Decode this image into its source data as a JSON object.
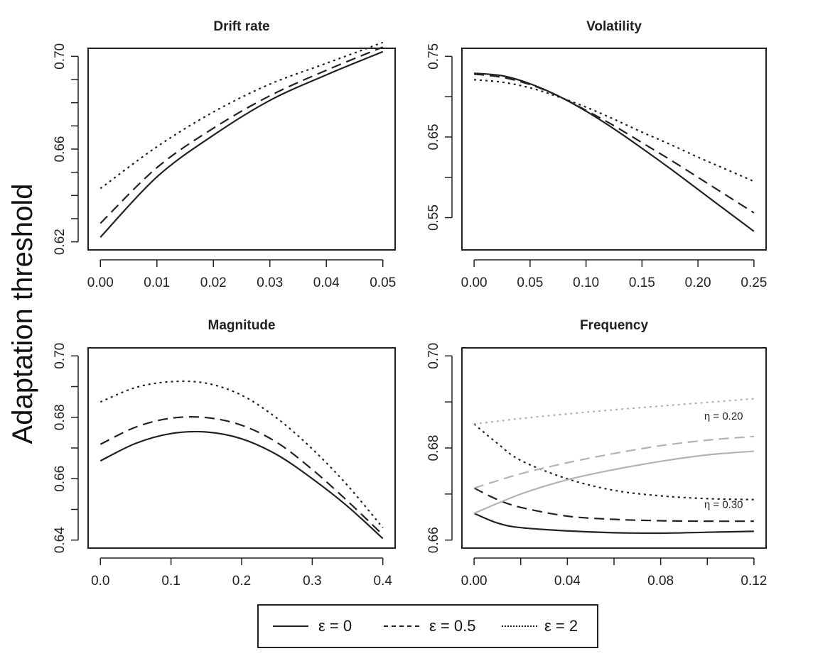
{
  "figure": {
    "ylabel": "Adaptation threshold"
  },
  "legend": {
    "items": [
      {
        "label": "ε = 0",
        "style": "solid"
      },
      {
        "label": "ε = 0.5",
        "style": "dashed"
      },
      {
        "label": "ε = 2",
        "style": "dotted"
      }
    ]
  },
  "chart_data": [
    {
      "type": "line",
      "title": "Drift rate",
      "xlabel": "",
      "ylabel": "",
      "xlim": [
        0,
        0.05
      ],
      "ylim": [
        0.62,
        0.7
      ],
      "xticks": [
        0.0,
        0.01,
        0.02,
        0.03,
        0.04,
        0.05
      ],
      "xtick_labels": [
        "0.00",
        "0.01",
        "0.02",
        "0.03",
        "0.04",
        "0.05"
      ],
      "yticks": [
        0.62,
        0.63,
        0.64,
        0.65,
        0.66,
        0.67,
        0.68,
        0.69,
        0.7
      ],
      "ytick_labels": {
        "0.62": "0.62",
        "0.66": "0.66",
        "0.70": "0.70"
      },
      "grid": false,
      "series": [
        {
          "style": "solid",
          "x": [
            0,
            0.01,
            0.02,
            0.03,
            0.04,
            0.05
          ],
          "y": [
            0.622,
            0.648,
            0.666,
            0.681,
            0.692,
            0.702
          ]
        },
        {
          "style": "dashed",
          "x": [
            0,
            0.01,
            0.02,
            0.03,
            0.04,
            0.05
          ],
          "y": [
            0.628,
            0.652,
            0.669,
            0.683,
            0.694,
            0.704
          ]
        },
        {
          "style": "dotted",
          "x": [
            0,
            0.01,
            0.02,
            0.03,
            0.04,
            0.05
          ],
          "y": [
            0.643,
            0.661,
            0.676,
            0.688,
            0.697,
            0.706
          ]
        }
      ]
    },
    {
      "type": "line",
      "title": "Volatility",
      "xlabel": "",
      "ylabel": "",
      "xlim": [
        0,
        0.25
      ],
      "ylim": [
        0.52,
        0.75
      ],
      "xticks": [
        0.0,
        0.05,
        0.1,
        0.15,
        0.2,
        0.25
      ],
      "xtick_labels": [
        "0.00",
        "0.05",
        "0.10",
        "0.15",
        "0.20",
        "0.25"
      ],
      "yticks": [
        0.55,
        0.6,
        0.65,
        0.7,
        0.75
      ],
      "ytick_labels": {
        "0.55": "0.55",
        "0.65": "0.65",
        "0.75": "0.75"
      },
      "grid": false,
      "series": [
        {
          "style": "solid",
          "x": [
            0,
            0.025,
            0.05,
            0.075,
            0.1,
            0.125,
            0.15,
            0.175,
            0.2,
            0.225,
            0.25
          ],
          "y": [
            0.729,
            0.726,
            0.716,
            0.701,
            0.682,
            0.66,
            0.636,
            0.611,
            0.585,
            0.559,
            0.533
          ]
        },
        {
          "style": "dashed",
          "x": [
            0,
            0.025,
            0.05,
            0.075,
            0.1,
            0.125,
            0.15,
            0.175,
            0.2,
            0.225,
            0.25
          ],
          "y": [
            0.728,
            0.724,
            0.715,
            0.701,
            0.683,
            0.664,
            0.643,
            0.622,
            0.6,
            0.578,
            0.556
          ]
        },
        {
          "style": "dotted",
          "x": [
            0,
            0.025,
            0.05,
            0.075,
            0.1,
            0.125,
            0.15,
            0.175,
            0.2,
            0.225,
            0.25
          ],
          "y": [
            0.721,
            0.718,
            0.711,
            0.7,
            0.687,
            0.672,
            0.656,
            0.641,
            0.625,
            0.61,
            0.595
          ]
        }
      ]
    },
    {
      "type": "line",
      "title": "Magnitude",
      "xlabel": "",
      "ylabel": "",
      "xlim": [
        0,
        0.4
      ],
      "ylim": [
        0.64,
        0.7
      ],
      "xticks": [
        0.0,
        0.1,
        0.2,
        0.3,
        0.4
      ],
      "xtick_labels": [
        "0.0",
        "0.1",
        "0.2",
        "0.3",
        "0.4"
      ],
      "yticks": [
        0.64,
        0.65,
        0.66,
        0.67,
        0.68,
        0.69,
        0.7
      ],
      "ytick_labels": {
        "0.64": "0.64",
        "0.66": "0.66",
        "0.68": "0.68",
        "0.70": "0.70"
      },
      "grid": false,
      "series": [
        {
          "style": "solid",
          "x": [
            0,
            0.05,
            0.1,
            0.15,
            0.2,
            0.25,
            0.3,
            0.35,
            0.4
          ],
          "y": [
            0.6658,
            0.6715,
            0.6747,
            0.6752,
            0.673,
            0.6678,
            0.66,
            0.651,
            0.6405
          ]
        },
        {
          "style": "dashed",
          "x": [
            0,
            0.05,
            0.1,
            0.15,
            0.2,
            0.25,
            0.3,
            0.35,
            0.4
          ],
          "y": [
            0.6712,
            0.6768,
            0.6797,
            0.6799,
            0.6774,
            0.6718,
            0.663,
            0.6527,
            0.6417
          ]
        },
        {
          "style": "dotted",
          "x": [
            0,
            0.05,
            0.1,
            0.15,
            0.2,
            0.25,
            0.3,
            0.35,
            0.4
          ],
          "y": [
            0.685,
            0.6897,
            0.6916,
            0.6911,
            0.6872,
            0.6797,
            0.6697,
            0.6578,
            0.644
          ]
        }
      ]
    },
    {
      "type": "line",
      "title": "Frequency",
      "xlabel": "",
      "ylabel": "",
      "xlim": [
        0,
        0.12
      ],
      "ylim": [
        0.66,
        0.7
      ],
      "xticks": [
        0.0,
        0.02,
        0.04,
        0.06,
        0.08,
        0.1,
        0.12
      ],
      "xtick_labels": {
        "0": "0.00",
        "0.04": "0.04",
        "0.08": "0.08",
        "0.12": "0.12"
      },
      "yticks": [
        0.66,
        0.67,
        0.68,
        0.69,
        0.7
      ],
      "ytick_labels": {
        "0.66": "0.66",
        "0.68": "0.68",
        "0.70": "0.70"
      },
      "grid": false,
      "annotations": [
        {
          "text": "η = 0.20",
          "x": 0.107,
          "y": 0.6862,
          "color": "#9a9a9a"
        },
        {
          "text": "η = 0.30",
          "x": 0.107,
          "y": 0.667,
          "color": "#222222"
        }
      ],
      "series": [
        {
          "name": "η = 0.30",
          "style": "solid",
          "color": "#222222",
          "x": [
            0,
            0.01,
            0.02,
            0.04,
            0.06,
            0.08,
            0.1,
            0.12
          ],
          "y": [
            0.6658,
            0.6637,
            0.6627,
            0.662,
            0.6616,
            0.6615,
            0.6617,
            0.6619
          ]
        },
        {
          "name": "η = 0.30",
          "style": "dashed",
          "color": "#222222",
          "x": [
            0,
            0.01,
            0.02,
            0.04,
            0.06,
            0.08,
            0.1,
            0.12
          ],
          "y": [
            0.6713,
            0.6688,
            0.6671,
            0.6652,
            0.6645,
            0.6642,
            0.6641,
            0.6641
          ]
        },
        {
          "name": "η = 0.30",
          "style": "dotted",
          "color": "#222222",
          "x": [
            0,
            0.01,
            0.02,
            0.04,
            0.06,
            0.08,
            0.1,
            0.12
          ],
          "y": [
            0.6852,
            0.681,
            0.6773,
            0.6733,
            0.6708,
            0.6696,
            0.669,
            0.6688
          ]
        },
        {
          "name": "η = 0.20",
          "style": "solid",
          "color": "#b3b3b3",
          "x": [
            0,
            0.02,
            0.04,
            0.06,
            0.08,
            0.1,
            0.12
          ],
          "y": [
            0.6658,
            0.67,
            0.6731,
            0.6753,
            0.6771,
            0.6785,
            0.6793
          ]
        },
        {
          "name": "η = 0.20",
          "style": "dashed",
          "color": "#b3b3b3",
          "x": [
            0,
            0.02,
            0.04,
            0.06,
            0.08,
            0.1,
            0.12
          ],
          "y": [
            0.6713,
            0.6744,
            0.6768,
            0.6788,
            0.6805,
            0.6817,
            0.6825
          ]
        },
        {
          "name": "η = 0.20",
          "style": "dotted",
          "color": "#b3b3b3",
          "x": [
            0,
            0.02,
            0.04,
            0.06,
            0.08,
            0.1,
            0.12
          ],
          "y": [
            0.6852,
            0.6864,
            0.6874,
            0.6883,
            0.6891,
            0.6899,
            0.6907
          ]
        }
      ]
    }
  ]
}
